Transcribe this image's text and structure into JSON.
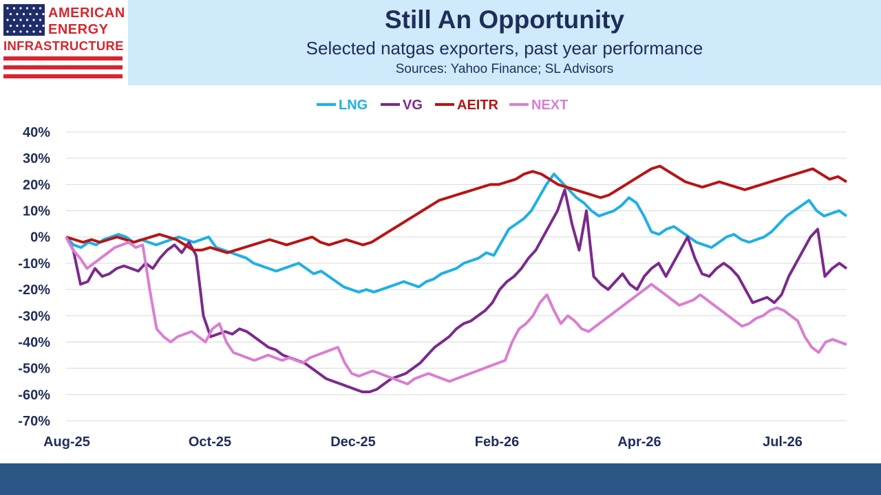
{
  "header": {
    "title": "Still An Opportunity",
    "subtitle": "Selected natgas exporters, past year performance",
    "sources": "Sources: Yahoo Finance; SL Advisors"
  },
  "logo": {
    "line1": "AMERICAN",
    "line2": "ENERGY",
    "line3": "INFRASTRUCTURE",
    "flag_blue": "#1f2d6b",
    "flag_red": "#d7262e"
  },
  "colors": {
    "header_bg": "#cfeafb",
    "footer_bg": "#2a5585",
    "text": "#1f2d5a"
  },
  "chart_data": {
    "type": "line",
    "x_ticks": [
      "Aug-25",
      "Oct-25",
      "Dec-25",
      "Feb-26",
      "Apr-26",
      "Jul-26"
    ],
    "x_tick_index": [
      0,
      42,
      84,
      126,
      168,
      210
    ],
    "y_ticks": [
      "40%",
      "30%",
      "20%",
      "10%",
      "0%",
      "-10%",
      "-20%",
      "-30%",
      "-40%",
      "-50%",
      "-60%",
      "-70%"
    ],
    "ylim": [
      -70,
      40
    ],
    "grid": true,
    "legend_position": "top-center",
    "series": [
      {
        "name": "LNG",
        "color": "#1fb0e4",
        "values": [
          0,
          -3,
          -4,
          -2,
          -3,
          -1,
          0,
          1,
          0,
          -2,
          -1,
          -2,
          -3,
          -2,
          -1,
          0,
          -1,
          -2,
          -1,
          0,
          -4,
          -5,
          -6,
          -7,
          -8,
          -10,
          -11,
          -12,
          -13,
          -12,
          -11,
          -10,
          -12,
          -14,
          -13,
          -15,
          -17,
          -19,
          -20,
          -21,
          -20,
          -21,
          -20,
          -19,
          -18,
          -17,
          -18,
          -19,
          -17,
          -16,
          -14,
          -13,
          -12,
          -10,
          -9,
          -8,
          -6,
          -7,
          -2,
          3,
          5,
          7,
          10,
          15,
          20,
          24,
          21,
          18,
          15,
          13,
          10,
          8,
          9,
          10,
          12,
          15,
          13,
          8,
          2,
          1,
          3,
          4,
          2,
          0,
          -2,
          -3,
          -4,
          -2,
          0,
          1,
          -1,
          -2,
          -1,
          0,
          2,
          5,
          8,
          10,
          12,
          14,
          10,
          8,
          9,
          10,
          8
        ]
      },
      {
        "name": "VG",
        "color": "#7b2a8b",
        "values": [
          0,
          -5,
          -18,
          -17,
          -12,
          -15,
          -14,
          -12,
          -11,
          -12,
          -13,
          -10,
          -12,
          -8,
          -5,
          -3,
          -6,
          -2,
          -7,
          -30,
          -38,
          -37,
          -36,
          -37,
          -35,
          -36,
          -38,
          -40,
          -42,
          -43,
          -45,
          -46,
          -47,
          -48,
          -50,
          -52,
          -54,
          -55,
          -56,
          -57,
          -58,
          -59,
          -59,
          -58,
          -56,
          -54,
          -53,
          -52,
          -50,
          -48,
          -45,
          -42,
          -40,
          -38,
          -35,
          -33,
          -32,
          -30,
          -28,
          -25,
          -20,
          -17,
          -15,
          -12,
          -8,
          -5,
          0,
          5,
          10,
          18,
          5,
          -5,
          10,
          -15,
          -18,
          -20,
          -17,
          -14,
          -18,
          -20,
          -15,
          -12,
          -10,
          -15,
          -10,
          -5,
          0,
          -8,
          -14,
          -15,
          -12,
          -10,
          -12,
          -15,
          -20,
          -25,
          -24,
          -23,
          -25,
          -22,
          -15,
          -10,
          -5,
          0,
          3,
          -15,
          -12,
          -10,
          -12
        ]
      },
      {
        "name": "AEITR",
        "color": "#b81414",
        "values": [
          0,
          -1,
          -2,
          -1,
          -2,
          -1,
          0,
          -1,
          -2,
          -1,
          0,
          1,
          0,
          -1,
          -3,
          -5,
          -5,
          -4,
          -5,
          -6,
          -5,
          -4,
          -3,
          -2,
          -1,
          -2,
          -3,
          -2,
          -1,
          0,
          -2,
          -3,
          -2,
          -1,
          -2,
          -3,
          -2,
          0,
          2,
          4,
          6,
          8,
          10,
          12,
          14,
          15,
          16,
          17,
          18,
          19,
          20,
          20,
          21,
          22,
          24,
          25,
          24,
          22,
          20,
          19,
          18,
          17,
          16,
          15,
          16,
          18,
          20,
          22,
          24,
          26,
          27,
          25,
          23,
          21,
          20,
          19,
          20,
          21,
          20,
          19,
          18,
          19,
          20,
          21,
          22,
          23,
          24,
          25,
          26,
          24,
          22,
          23,
          21
        ]
      },
      {
        "name": "NEXT",
        "color": "#d97fd1",
        "values": [
          0,
          -5,
          -8,
          -12,
          -10,
          -8,
          -6,
          -4,
          -3,
          -2,
          -4,
          -3,
          -20,
          -35,
          -38,
          -40,
          -38,
          -37,
          -36,
          -38,
          -40,
          -35,
          -33,
          -40,
          -44,
          -45,
          -46,
          -47,
          -46,
          -45,
          -46,
          -47,
          -46,
          -47,
          -48,
          -46,
          -45,
          -44,
          -43,
          -42,
          -48,
          -52,
          -53,
          -52,
          -51,
          -52,
          -53,
          -54,
          -55,
          -56,
          -54,
          -53,
          -52,
          -53,
          -54,
          -55,
          -54,
          -53,
          -52,
          -51,
          -50,
          -49,
          -48,
          -47,
          -40,
          -35,
          -33,
          -30,
          -25,
          -22,
          -28,
          -33,
          -30,
          -32,
          -35,
          -36,
          -34,
          -32,
          -30,
          -28,
          -26,
          -24,
          -22,
          -20,
          -18,
          -20,
          -22,
          -24,
          -26,
          -25,
          -24,
          -22,
          -24,
          -26,
          -28,
          -30,
          -32,
          -34,
          -33,
          -31,
          -30,
          -28,
          -27,
          -28,
          -30,
          -32,
          -38,
          -42,
          -44,
          -40,
          -39,
          -40,
          -41
        ]
      }
    ]
  }
}
